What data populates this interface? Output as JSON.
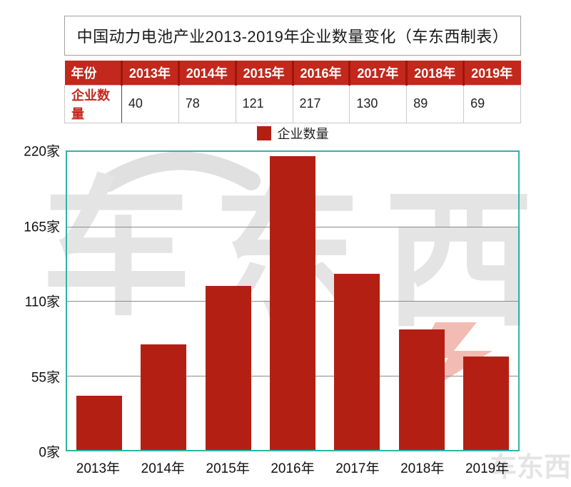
{
  "title": "中国动力电池产业2013-2019年企业数量变化（车东西制表）",
  "table": {
    "header": [
      "年份",
      "2013年",
      "2014年",
      "2015年",
      "2016年",
      "2017年",
      "2018年",
      "2019年"
    ],
    "row_label": "企业数量",
    "values": [
      "40",
      "78",
      "121",
      "217",
      "130",
      "89",
      "69"
    ]
  },
  "legend": {
    "label": "企业数量",
    "color": "#b32013"
  },
  "chart_data": {
    "type": "bar",
    "title": "中国动力电池产业2013-2019年企业数量变化（车东西制表）",
    "series_name": "企业数量",
    "categories": [
      "2013年",
      "2014年",
      "2015年",
      "2016年",
      "2017年",
      "2018年",
      "2019年"
    ],
    "values": [
      40,
      78,
      121,
      217,
      130,
      89,
      69
    ],
    "xlabel": "",
    "ylabel": "",
    "ylim": [
      0,
      220
    ],
    "yticks": [
      "220家",
      "165家",
      "110家",
      "55家",
      "0家"
    ],
    "ytick_values": [
      220,
      165,
      110,
      55,
      0
    ],
    "grid": true,
    "legend_position": "top",
    "bar_color": "#b32013",
    "plot_border_color": "#2db5a5",
    "gridline_color": "#8c8c8c"
  },
  "watermark": {
    "char_1": "车",
    "char_2": "东",
    "char_3": "西",
    "small_text": "车东西"
  }
}
